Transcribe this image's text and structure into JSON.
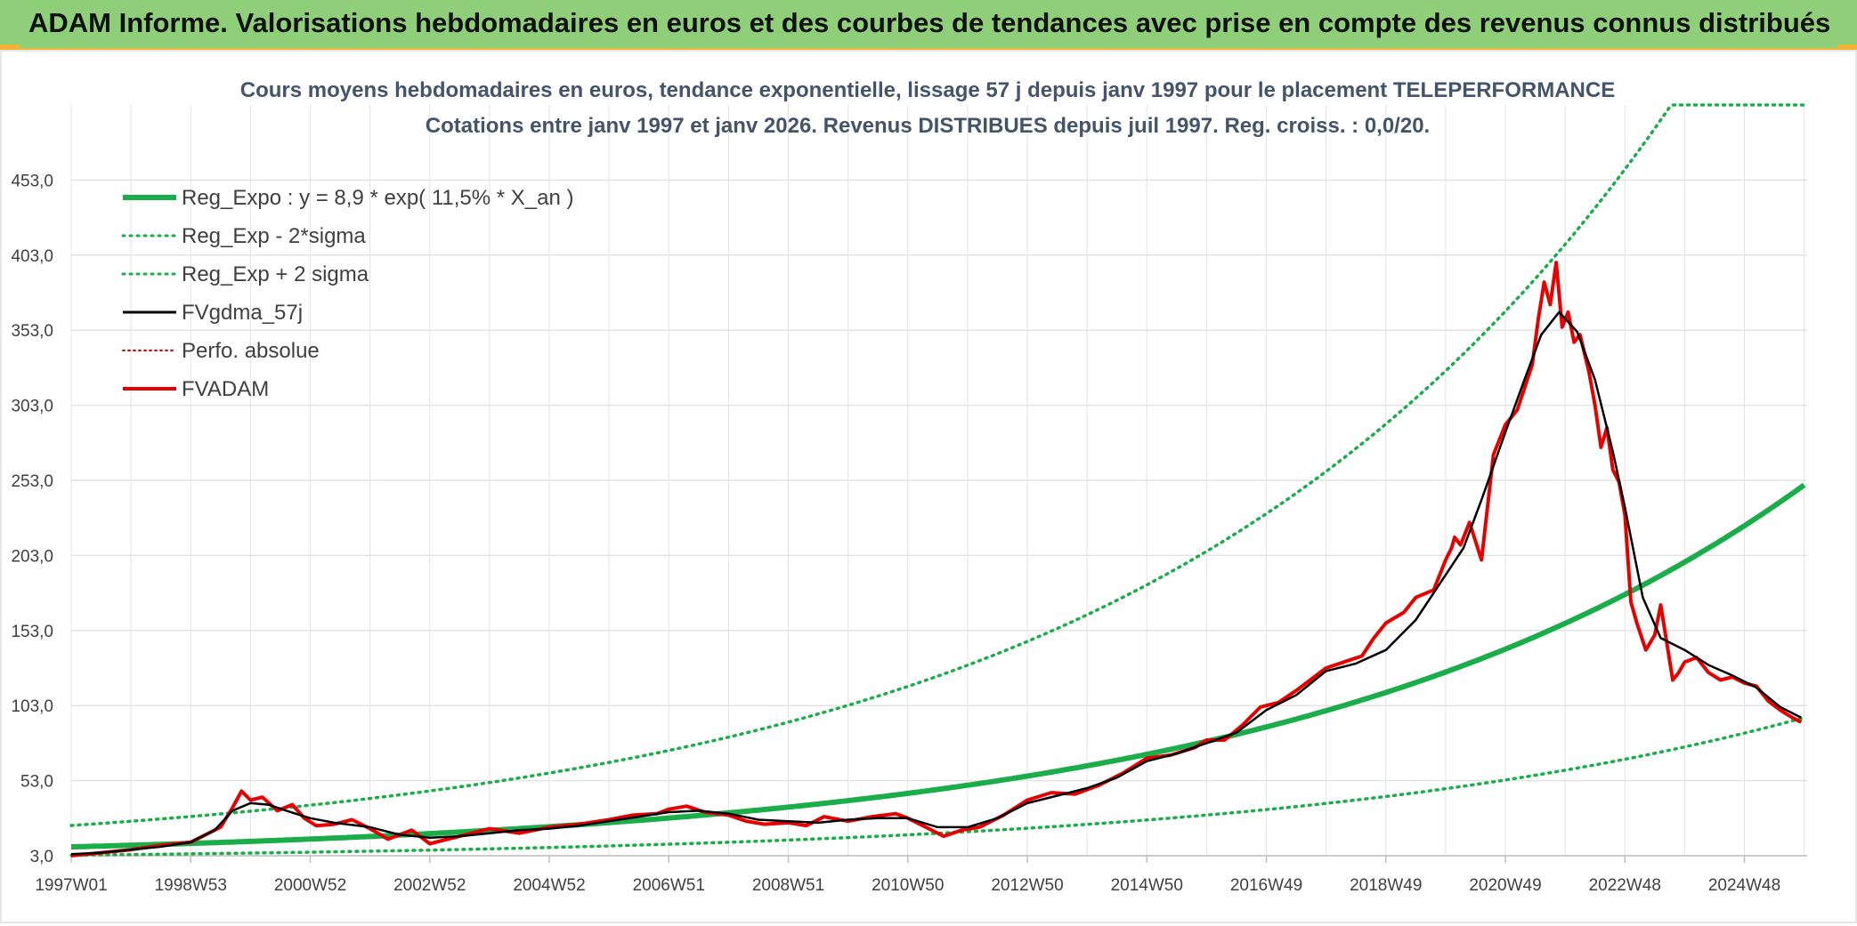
{
  "banner": {
    "title": "ADAM Informe. Valorisations hebdomadaires en euros et des courbes de tendances avec prise en compte des revenus connus distribués"
  },
  "colors": {
    "banner_bg": "#8fcf7a",
    "accent": "#f2b233",
    "reg_expo": "#1aad4a",
    "sigma": "#1aad4a",
    "fvgdma": "#000000",
    "perfo": "#e00000",
    "fvadam": "#e60000",
    "grid": "#e3e3e3",
    "title_text": "#44546a"
  },
  "chart_data": {
    "type": "line",
    "title": "Cours moyens hebdomadaires en euros, tendance exponentielle, lissage 57 j depuis janv 1997 pour le placement TELEPERFORMANCE",
    "subtitle": "Cotations entre janv 1997 et janv 2026. Revenus DISTRIBUES depuis juil 1997. Reg. croiss. : 0,0/20.",
    "xlabel": "",
    "ylabel": "",
    "ylim": [
      3,
      503
    ],
    "yticks": [
      "3,0",
      "53,0",
      "103,0",
      "153,0",
      "203,0",
      "253,0",
      "303,0",
      "353,0",
      "403,0",
      "453,0"
    ],
    "ytick_values": [
      3,
      53,
      103,
      153,
      203,
      253,
      303,
      353,
      403,
      453
    ],
    "xlim": [
      1997.0,
      2026.05
    ],
    "xticks": [
      "1997W01",
      "1998W53",
      "2000W52",
      "2002W52",
      "2004W52",
      "2006W51",
      "2008W51",
      "2010W50",
      "2012W50",
      "2014W50",
      "2016W49",
      "2018W49",
      "2020W49",
      "2022W48",
      "2024W48"
    ],
    "xtick_values": [
      1997.0,
      1999.0,
      2001.0,
      2003.0,
      2005.0,
      2007.0,
      2009.0,
      2011.0,
      2013.0,
      2015.0,
      2017.0,
      2019.0,
      2021.0,
      2023.0,
      2025.0
    ],
    "grid": true,
    "legend_position": "top-left",
    "legend": [
      {
        "name": "Reg_Expo : y = 8,9 * exp( 11,5% *  X_an )",
        "color": "#1aad4a",
        "style": "solid",
        "width": 6
      },
      {
        "name": "Reg_Exp - 2*sigma",
        "color": "#1aad4a",
        "style": "dotted",
        "width": 3
      },
      {
        "name": "Reg_Exp + 2 sigma",
        "color": "#1aad4a",
        "style": "dotted",
        "width": 3
      },
      {
        "name": "FVgdma_57j",
        "color": "#000000",
        "style": "solid",
        "width": 3
      },
      {
        "name": "Perfo. absolue",
        "color": "#e00000",
        "style": "dotted",
        "width": 2
      },
      {
        "name": "FVADAM",
        "color": "#e60000",
        "style": "solid",
        "width": 4
      }
    ],
    "trend": {
      "a": 8.9,
      "b": 0.115,
      "lower_factor": 0.38,
      "upper_factor": 2.6,
      "cap": 503
    },
    "series": [
      {
        "name": "FVADAM",
        "x": [
          1997.0,
          1997.5,
          1998.0,
          1998.5,
          1999.0,
          1999.2,
          1999.5,
          1999.7,
          1999.85,
          2000.0,
          2000.2,
          2000.45,
          2000.7,
          2000.9,
          2001.1,
          2001.4,
          2001.7,
          2002.0,
          2002.3,
          2002.7,
          2003.0,
          2003.3,
          2003.6,
          2004.0,
          2004.5,
          2005.0,
          2005.5,
          2006.0,
          2006.4,
          2006.8,
          2007.0,
          2007.3,
          2007.6,
          2008.0,
          2008.3,
          2008.6,
          2009.0,
          2009.3,
          2009.6,
          2010.0,
          2010.4,
          2010.8,
          2011.0,
          2011.3,
          2011.6,
          2011.9,
          2012.2,
          2012.6,
          2013.0,
          2013.4,
          2013.8,
          2014.2,
          2014.6,
          2015.0,
          2015.4,
          2015.8,
          2016.0,
          2016.3,
          2016.6,
          2016.9,
          2017.2,
          2017.5,
          2017.8,
          2018.0,
          2018.3,
          2018.6,
          2018.8,
          2019.0,
          2019.3,
          2019.5,
          2019.8,
          2020.0,
          2020.1,
          2020.15,
          2020.25,
          2020.4,
          2020.6,
          2020.8,
          2021.0,
          2021.2,
          2021.45,
          2021.55,
          2021.65,
          2021.75,
          2021.85,
          2021.95,
          2022.05,
          2022.15,
          2022.25,
          2022.4,
          2022.5,
          2022.6,
          2022.7,
          2022.8,
          2022.9,
          2023.0,
          2023.1,
          2023.2,
          2023.35,
          2023.5,
          2023.6,
          2023.7,
          2023.8,
          2023.9,
          2024.0,
          2024.2,
          2024.4,
          2024.6,
          2024.8,
          2025.0,
          2025.2,
          2025.4,
          2025.6,
          2025.8,
          2025.95
        ],
        "y": [
          3,
          5,
          7,
          10,
          12,
          16,
          22,
          35,
          46,
          40,
          42,
          33,
          37,
          28,
          23,
          24,
          27,
          21,
          14,
          20,
          11,
          14,
          17,
          21,
          18,
          22,
          24,
          27,
          30,
          31,
          34,
          36,
          32,
          30,
          26,
          24,
          25,
          23,
          29,
          26,
          29,
          31,
          28,
          22,
          16,
          20,
          22,
          30,
          40,
          45,
          44,
          50,
          58,
          68,
          70,
          75,
          80,
          80,
          90,
          102,
          105,
          113,
          122,
          128,
          132,
          136,
          148,
          158,
          165,
          175,
          180,
          200,
          208,
          215,
          210,
          225,
          200,
          270,
          290,
          300,
          330,
          360,
          385,
          370,
          398,
          355,
          365,
          345,
          350,
          325,
          303,
          275,
          288,
          260,
          252,
          230,
          172,
          158,
          140,
          150,
          170,
          145,
          120,
          125,
          132,
          135,
          125,
          120,
          122,
          118,
          116,
          106,
          100,
          95,
          92
        ]
      },
      {
        "name": "FVgdma_57j",
        "x": [
          1997.0,
          1997.5,
          1998.0,
          1998.5,
          1999.0,
          1999.4,
          1999.7,
          2000.0,
          2000.3,
          2000.6,
          2001.0,
          2001.4,
          2002.0,
          2002.5,
          2003.0,
          2003.5,
          2004.0,
          2004.5,
          2005.0,
          2005.5,
          2006.0,
          2006.5,
          2007.0,
          2007.5,
          2008.0,
          2008.5,
          2009.0,
          2009.5,
          2010.0,
          2010.5,
          2011.0,
          2011.5,
          2012.0,
          2012.5,
          2013.0,
          2013.5,
          2014.0,
          2014.5,
          2015.0,
          2015.5,
          2016.0,
          2016.5,
          2017.0,
          2017.5,
          2018.0,
          2018.5,
          2019.0,
          2019.5,
          2020.0,
          2020.3,
          2020.6,
          2021.0,
          2021.3,
          2021.6,
          2021.9,
          2022.2,
          2022.5,
          2022.8,
          2023.0,
          2023.3,
          2023.6,
          2024.0,
          2024.4,
          2024.8,
          2025.2,
          2025.6,
          2025.95
        ],
        "y": [
          4,
          5,
          7,
          9,
          12,
          20,
          33,
          38,
          37,
          33,
          28,
          25,
          22,
          17,
          15,
          16,
          18,
          20,
          21,
          23,
          26,
          29,
          32,
          33,
          31,
          27,
          26,
          25,
          27,
          28,
          28,
          22,
          22,
          28,
          38,
          43,
          48,
          55,
          66,
          71,
          78,
          85,
          100,
          110,
          126,
          131,
          140,
          160,
          190,
          208,
          240,
          285,
          318,
          350,
          365,
          352,
          320,
          272,
          235,
          175,
          148,
          140,
          130,
          123,
          115,
          102,
          95
        ]
      }
    ]
  }
}
